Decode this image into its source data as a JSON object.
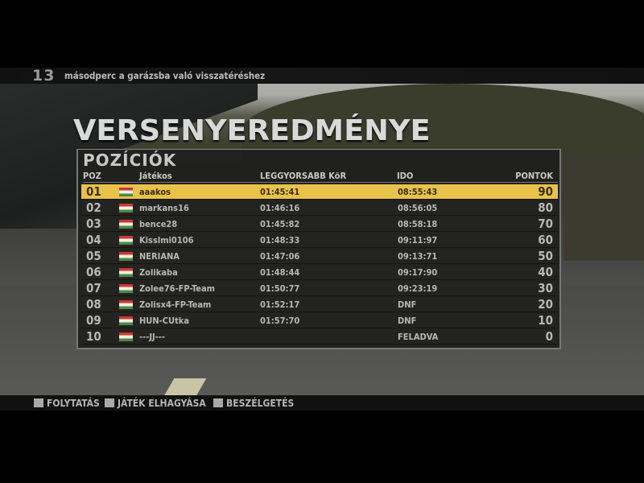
{
  "countdown": {
    "seconds": "13",
    "message": "másodperc a garázsba való visszatéréshez"
  },
  "title": "VERSENYEREDMÉNYE",
  "panel": {
    "title": "POZÍCIÓK",
    "headers": {
      "pos": "POZ",
      "player": "Játékos",
      "best_lap": "LEGGYORSABB KöR",
      "time": "IDO",
      "points": "PONTOK"
    },
    "rows": [
      {
        "pos": "01",
        "player": "aaakos",
        "lap": "01:45:41",
        "time": "08:55:43",
        "points": "90"
      },
      {
        "pos": "02",
        "player": "markans16",
        "lap": "01:46:16",
        "time": "08:56:05",
        "points": "80"
      },
      {
        "pos": "03",
        "player": "bence28",
        "lap": "01:45:82",
        "time": "08:58:18",
        "points": "70"
      },
      {
        "pos": "04",
        "player": "Kisslmi0106",
        "lap": "01:48:33",
        "time": "09:11:97",
        "points": "60"
      },
      {
        "pos": "05",
        "player": "NERIANA",
        "lap": "01:47:06",
        "time": "09:13:71",
        "points": "50"
      },
      {
        "pos": "06",
        "player": "Zolikaba",
        "lap": "01:48:44",
        "time": "09:17:90",
        "points": "40"
      },
      {
        "pos": "07",
        "player": "Zolee76-FP-Team",
        "lap": "01:50:77",
        "time": "09:23:19",
        "points": "30"
      },
      {
        "pos": "08",
        "player": "Zolisx4-FP-Team",
        "lap": "01:52:17",
        "time": "DNF",
        "points": "20"
      },
      {
        "pos": "09",
        "player": "HUN-CUtka",
        "lap": "01:57:70",
        "time": "DNF",
        "points": "10"
      },
      {
        "pos": "10",
        "player": "---JJ---",
        "lap": "",
        "time": "FELADVA",
        "points": "0"
      }
    ],
    "highlight_color": "#e8c24a",
    "flag": "hungary-flag-icon"
  },
  "footer": {
    "continue": "FOLYTATÁS",
    "quit": "JÁTÉK ELHAGYÁSA",
    "chat": "BESZÉLGETÉS"
  }
}
